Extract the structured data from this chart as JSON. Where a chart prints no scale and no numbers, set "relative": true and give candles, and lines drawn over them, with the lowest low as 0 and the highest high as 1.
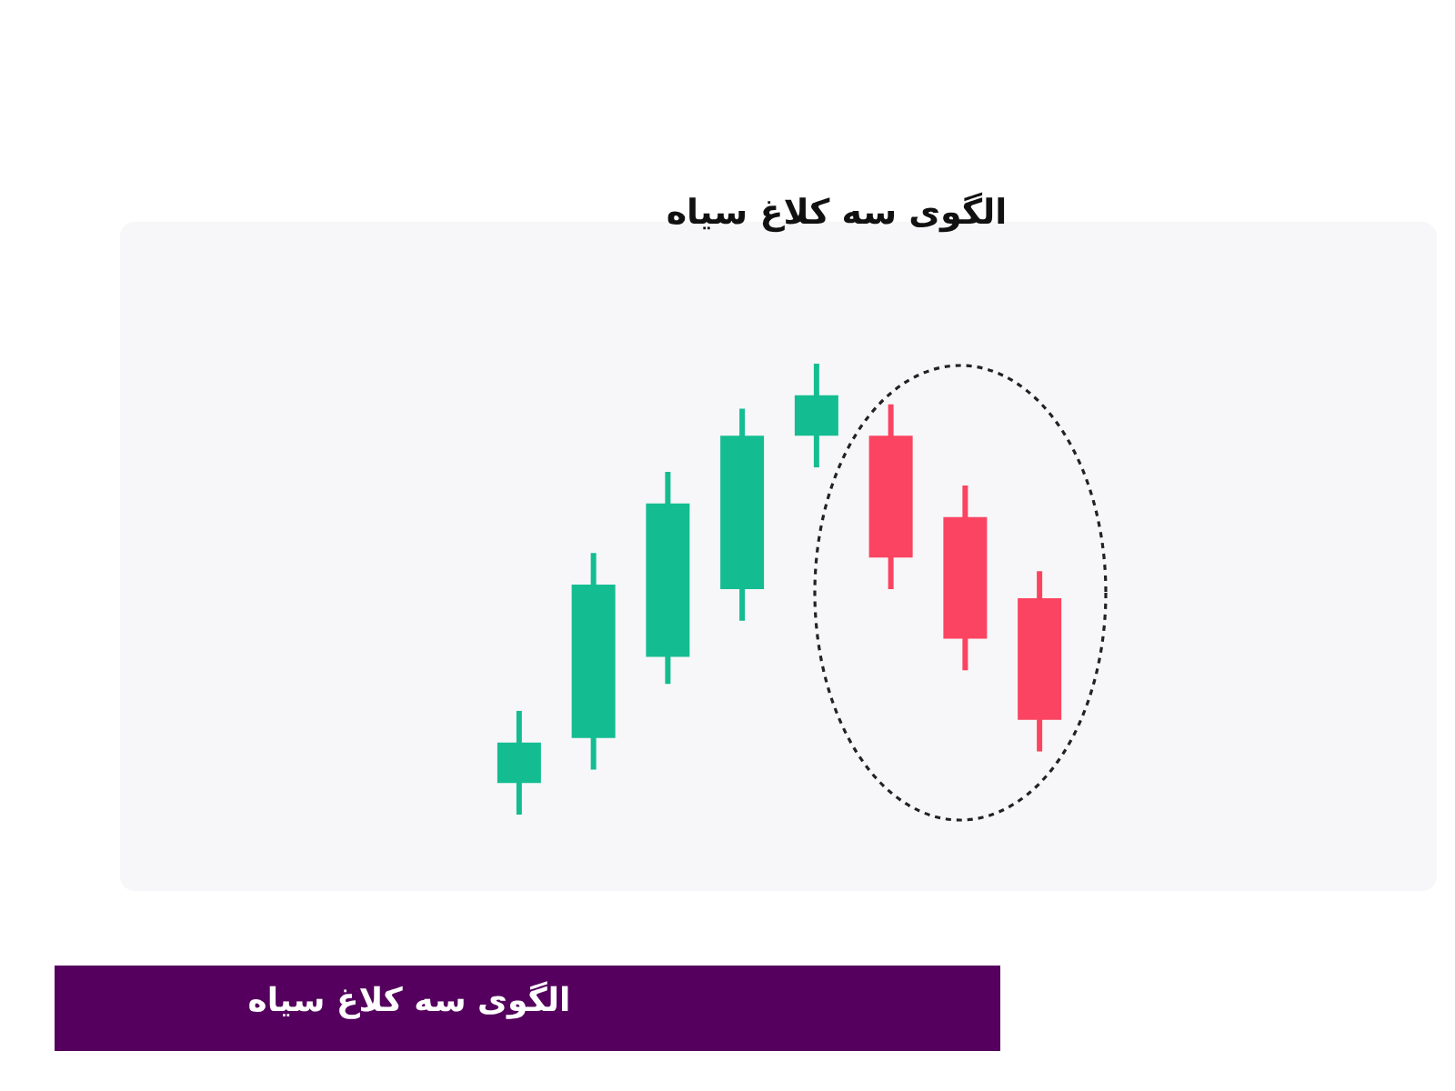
{
  "chart_data": {
    "type": "candlestick",
    "title": "الگوی سه کلاغ سیاه",
    "relative": true,
    "categories": [
      null,
      null,
      null,
      null,
      null,
      null,
      null,
      null
    ],
    "ohlc": [
      [
        0.07,
        0.23,
        0,
        0.16
      ],
      [
        0.17,
        0.58,
        0.1,
        0.51
      ],
      [
        0.35,
        0.76,
        0.29,
        0.69
      ],
      [
        0.5,
        0.9,
        0.43,
        0.84
      ],
      [
        0.84,
        1,
        0.77,
        0.93
      ],
      [
        0.84,
        0.91,
        0.5,
        0.57
      ],
      [
        0.66,
        0.73,
        0.32,
        0.39
      ],
      [
        0.48,
        0.54,
        0.14,
        0.21
      ]
    ],
    "colors": [
      "#14bd91",
      "#14bd91",
      "#14bd91",
      "#14bd91",
      "#14bd91",
      "#fb4461",
      "#fb4461",
      "#fb4461"
    ],
    "annotations": [
      "الگوی سه کلاغ سیاه"
    ],
    "legend": false
  }
}
